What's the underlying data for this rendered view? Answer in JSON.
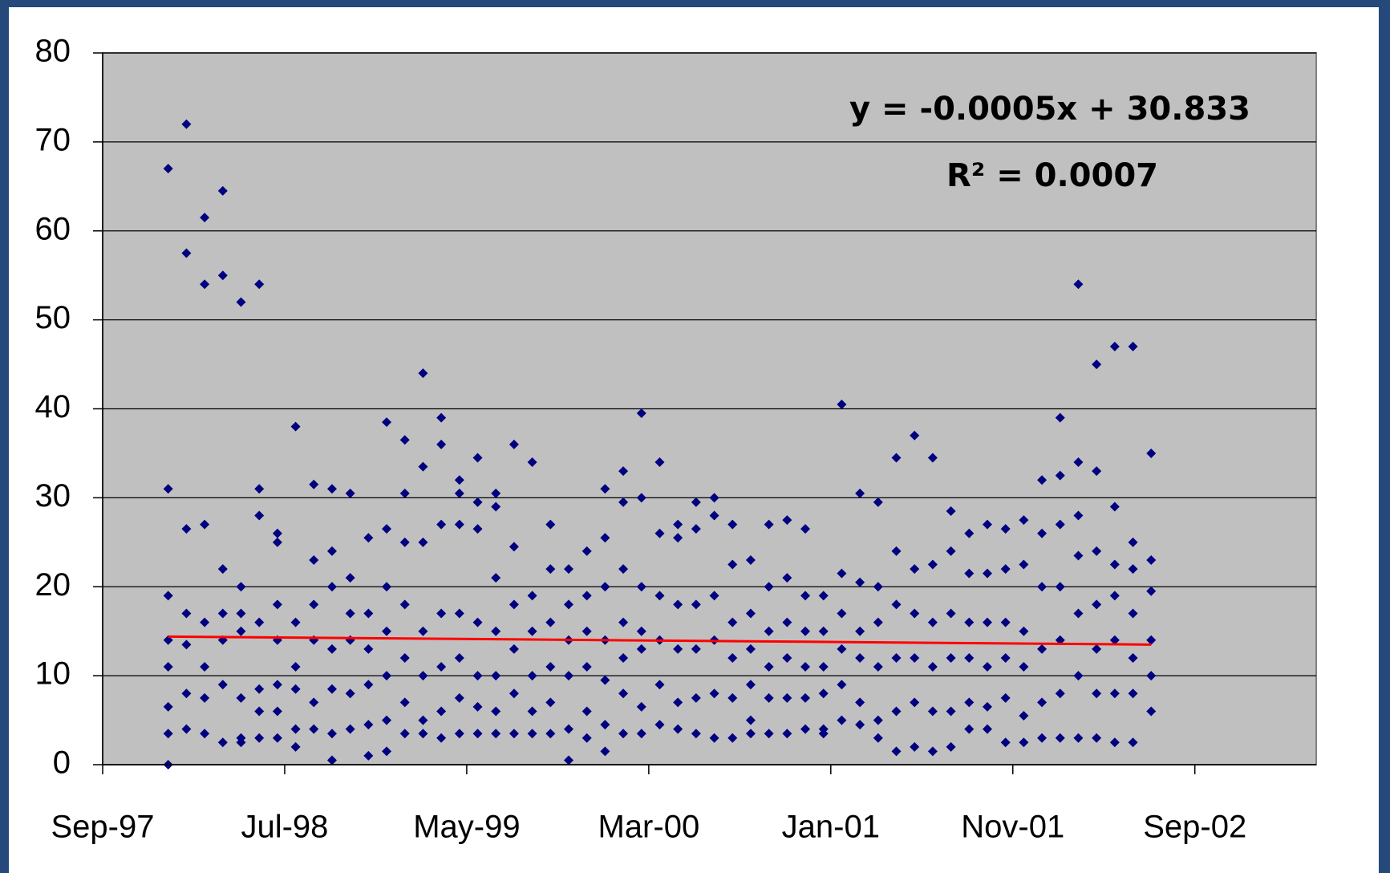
{
  "chart_data": {
    "type": "scatter",
    "xlim": [
      35700,
      37700
    ],
    "xticks": [
      {
        "value": 35700,
        "label": "Sep-97"
      },
      {
        "value": 36000,
        "label": "Jul-98"
      },
      {
        "value": 36300,
        "label": "May-99"
      },
      {
        "value": 36600,
        "label": "Mar-00"
      },
      {
        "value": 36900,
        "label": "Jan-01"
      },
      {
        "value": 37200,
        "label": "Nov-01"
      },
      {
        "value": 37500,
        "label": "Sep-02"
      }
    ],
    "ylim": [
      0,
      80
    ],
    "yticks": [
      0,
      10,
      20,
      30,
      40,
      50,
      60,
      70,
      80
    ],
    "grid": true,
    "annotations": [
      "y = -0.0005x + 30.833",
      "R² = 0.0007"
    ],
    "series": [
      {
        "color": "#000080",
        "x": [
          35808,
          35808,
          35808,
          35808,
          35808,
          35808,
          35808,
          35808,
          35838,
          35838,
          35838,
          35838,
          35838,
          35838,
          35838,
          35868,
          35868,
          35868,
          35868,
          35868,
          35868,
          35868,
          35898,
          35898,
          35898,
          35898,
          35898,
          35898,
          35898,
          35928,
          35928,
          35928,
          35928,
          35928,
          35928,
          35928,
          35958,
          35958,
          35958,
          35958,
          35958,
          35958,
          35958,
          35988,
          35988,
          35988,
          35988,
          35988,
          35988,
          35988,
          36018,
          36018,
          36018,
          36018,
          36018,
          36018,
          36048,
          36048,
          36048,
          36048,
          36048,
          36048,
          36078,
          36078,
          36078,
          36078,
          36078,
          36078,
          36078,
          36108,
          36108,
          36108,
          36108,
          36108,
          36108,
          36138,
          36138,
          36138,
          36138,
          36138,
          36138,
          36168,
          36168,
          36168,
          36168,
          36168,
          36168,
          36168,
          36198,
          36198,
          36198,
          36198,
          36198,
          36198,
          36198,
          36228,
          36228,
          36228,
          36228,
          36228,
          36228,
          36228,
          36258,
          36258,
          36258,
          36258,
          36258,
          36258,
          36258,
          36288,
          36288,
          36288,
          36288,
          36288,
          36288,
          36288,
          36318,
          36318,
          36318,
          36318,
          36318,
          36318,
          36318,
          36348,
          36348,
          36348,
          36348,
          36348,
          36348,
          36348,
          36378,
          36378,
          36378,
          36378,
          36378,
          36378,
          36408,
          36408,
          36408,
          36408,
          36408,
          36408,
          36438,
          36438,
          36438,
          36438,
          36438,
          36438,
          36468,
          36468,
          36468,
          36468,
          36468,
          36468,
          36498,
          36498,
          36498,
          36498,
          36498,
          36498,
          36528,
          36528,
          36528,
          36528,
          36528,
          36528,
          36528,
          36558,
          36558,
          36558,
          36558,
          36558,
          36558,
          36558,
          36588,
          36588,
          36588,
          36588,
          36588,
          36588,
          36588,
          36618,
          36618,
          36618,
          36618,
          36618,
          36618,
          36648,
          36648,
          36648,
          36648,
          36648,
          36648,
          36678,
          36678,
          36678,
          36678,
          36678,
          36678,
          36708,
          36708,
          36708,
          36708,
          36708,
          36708,
          36738,
          36738,
          36738,
          36738,
          36738,
          36738,
          36768,
          36768,
          36768,
          36768,
          36768,
          36768,
          36798,
          36798,
          36798,
          36798,
          36798,
          36798,
          36828,
          36828,
          36828,
          36828,
          36828,
          36828,
          36858,
          36858,
          36858,
          36858,
          36858,
          36858,
          36888,
          36888,
          36888,
          36888,
          36888,
          36888,
          36918,
          36918,
          36918,
          36918,
          36918,
          36918,
          36948,
          36948,
          36948,
          36948,
          36948,
          36948,
          36978,
          36978,
          36978,
          36978,
          36978,
          36978,
          37008,
          37008,
          37008,
          37008,
          37008,
          37008,
          37038,
          37038,
          37038,
          37038,
          37038,
          37038,
          37068,
          37068,
          37068,
          37068,
          37068,
          37068,
          37098,
          37098,
          37098,
          37098,
          37098,
          37098,
          37128,
          37128,
          37128,
          37128,
          37128,
          37128,
          37158,
          37158,
          37158,
          37158,
          37158,
          37158,
          37188,
          37188,
          37188,
          37188,
          37188,
          37188,
          37218,
          37218,
          37218,
          37218,
          37218,
          37218,
          37248,
          37248,
          37248,
          37248,
          37248,
          37248,
          37278,
          37278,
          37278,
          37278,
          37278,
          37278,
          37278,
          37308,
          37308,
          37308,
          37308,
          37308,
          37308,
          37308,
          37338,
          37338,
          37338,
          37338,
          37338,
          37338,
          37338,
          37368,
          37368,
          37368,
          37368,
          37368,
          37368,
          37368,
          37398,
          37398,
          37398,
          37398,
          37398,
          37398,
          37398,
          37428,
          37428,
          37428,
          37428,
          37428,
          37428
        ],
        "values": [
          67,
          31,
          19,
          14,
          11,
          6.5,
          3.5,
          0,
          72,
          57.5,
          26.5,
          17,
          13.5,
          8,
          4,
          61.5,
          54,
          27,
          16,
          11,
          7.5,
          3.5,
          64.5,
          55,
          22,
          17,
          14,
          9,
          2.5,
          52,
          20,
          17,
          15,
          7.5,
          3,
          2.5,
          54,
          31,
          28,
          16,
          8.5,
          6,
          3,
          26,
          25,
          18,
          14,
          9,
          6,
          3,
          38,
          16,
          11,
          8.5,
          4,
          2,
          31.5,
          23,
          18,
          14,
          7,
          4,
          31,
          24,
          20,
          13,
          8.5,
          3.5,
          0.5,
          30.5,
          21,
          17,
          14,
          8,
          4,
          25.5,
          17,
          13,
          9,
          4.5,
          1,
          38.5,
          26.5,
          20,
          15,
          10,
          5,
          1.5,
          36.5,
          30.5,
          25,
          18,
          12,
          7,
          3.5,
          44,
          33.5,
          25,
          15,
          10,
          5,
          3.5,
          39,
          36,
          27,
          17,
          11,
          6,
          3,
          32,
          30.5,
          27,
          17,
          12,
          7.5,
          3.5,
          34.5,
          29.5,
          26.5,
          16,
          10,
          6.5,
          3.5,
          30.5,
          29,
          21,
          15,
          10,
          6,
          3.5,
          36,
          24.5,
          18,
          13,
          8,
          3.5,
          34,
          19,
          15,
          10,
          6,
          3.5,
          27,
          22,
          16,
          11,
          7,
          3.5,
          22,
          18,
          14,
          10,
          4,
          0.5,
          24,
          19,
          15,
          11,
          6,
          3,
          31,
          25.5,
          20,
          14,
          9.5,
          4.5,
          1.5,
          33,
          29.5,
          22,
          16,
          12,
          8,
          3.5,
          39.5,
          30,
          20,
          15,
          13,
          6.5,
          3.5,
          34,
          26,
          19,
          14,
          9,
          4.5,
          27,
          25.5,
          18,
          13,
          7,
          4,
          29.5,
          26.5,
          18,
          13,
          7.5,
          3.5,
          30,
          28,
          19,
          14,
          8,
          3,
          27,
          22.5,
          16,
          12,
          7.5,
          3,
          23,
          17,
          13,
          9,
          5,
          3.5,
          27,
          20,
          15,
          11,
          7.5,
          3.5,
          27.5,
          21,
          16,
          12,
          7.5,
          3.5,
          26.5,
          19,
          15,
          11,
          7.5,
          4,
          19,
          15,
          11,
          8,
          4,
          3.5,
          40.5,
          21.5,
          17,
          13,
          9,
          5,
          30.5,
          20.5,
          15,
          12,
          7,
          4.5,
          29.5,
          20,
          16,
          11,
          5,
          3,
          34.5,
          24,
          18,
          12,
          6,
          1.5,
          37,
          22,
          17,
          12,
          7,
          2,
          34.5,
          22.5,
          16,
          11,
          6,
          1.5,
          28.5,
          24,
          17,
          12,
          6,
          2,
          26,
          21.5,
          16,
          12,
          7,
          4,
          27,
          21.5,
          16,
          11,
          6.5,
          4,
          26.5,
          22,
          16,
          12,
          7.5,
          2.5,
          27.5,
          22.5,
          15,
          11,
          5.5,
          2.5,
          32,
          26,
          20,
          13,
          7,
          3,
          39,
          32.5,
          27,
          20,
          14,
          8,
          3,
          54,
          34,
          28,
          23.5,
          17,
          10,
          3,
          45,
          33,
          24,
          18,
          13,
          8,
          3,
          47,
          29,
          22.5,
          19,
          14,
          8,
          2.5,
          47,
          25,
          22,
          17,
          12,
          8,
          2.5,
          35,
          23,
          19.5,
          14,
          10,
          6
        ]
      }
    ],
    "trendline": {
      "color": "#ff0000",
      "x": [
        35808,
        37428
      ],
      "values": [
        14.4,
        13.5
      ]
    }
  }
}
